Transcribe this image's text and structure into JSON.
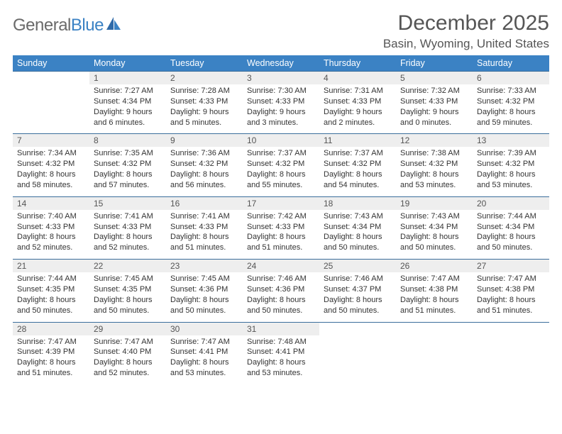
{
  "logo": {
    "text1": "General",
    "text2": "Blue"
  },
  "title": "December 2025",
  "location": "Basin, Wyoming, United States",
  "colors": {
    "header_bg": "#3b82c4",
    "header_text": "#ffffff",
    "daynum_bg": "#eeeeee",
    "rule": "#3b6e9c",
    "body_text": "#333333",
    "title_text": "#555555",
    "logo_gray": "#6a6a6a",
    "logo_blue": "#3b82c4",
    "page_bg": "#ffffff"
  },
  "weekdays": [
    "Sunday",
    "Monday",
    "Tuesday",
    "Wednesday",
    "Thursday",
    "Friday",
    "Saturday"
  ],
  "weeks": [
    [
      {
        "day": "",
        "sunrise": "",
        "sunset": "",
        "daylight": ""
      },
      {
        "day": "1",
        "sunrise": "Sunrise: 7:27 AM",
        "sunset": "Sunset: 4:34 PM",
        "daylight": "Daylight: 9 hours and 6 minutes."
      },
      {
        "day": "2",
        "sunrise": "Sunrise: 7:28 AM",
        "sunset": "Sunset: 4:33 PM",
        "daylight": "Daylight: 9 hours and 5 minutes."
      },
      {
        "day": "3",
        "sunrise": "Sunrise: 7:30 AM",
        "sunset": "Sunset: 4:33 PM",
        "daylight": "Daylight: 9 hours and 3 minutes."
      },
      {
        "day": "4",
        "sunrise": "Sunrise: 7:31 AM",
        "sunset": "Sunset: 4:33 PM",
        "daylight": "Daylight: 9 hours and 2 minutes."
      },
      {
        "day": "5",
        "sunrise": "Sunrise: 7:32 AM",
        "sunset": "Sunset: 4:33 PM",
        "daylight": "Daylight: 9 hours and 0 minutes."
      },
      {
        "day": "6",
        "sunrise": "Sunrise: 7:33 AM",
        "sunset": "Sunset: 4:32 PM",
        "daylight": "Daylight: 8 hours and 59 minutes."
      }
    ],
    [
      {
        "day": "7",
        "sunrise": "Sunrise: 7:34 AM",
        "sunset": "Sunset: 4:32 PM",
        "daylight": "Daylight: 8 hours and 58 minutes."
      },
      {
        "day": "8",
        "sunrise": "Sunrise: 7:35 AM",
        "sunset": "Sunset: 4:32 PM",
        "daylight": "Daylight: 8 hours and 57 minutes."
      },
      {
        "day": "9",
        "sunrise": "Sunrise: 7:36 AM",
        "sunset": "Sunset: 4:32 PM",
        "daylight": "Daylight: 8 hours and 56 minutes."
      },
      {
        "day": "10",
        "sunrise": "Sunrise: 7:37 AM",
        "sunset": "Sunset: 4:32 PM",
        "daylight": "Daylight: 8 hours and 55 minutes."
      },
      {
        "day": "11",
        "sunrise": "Sunrise: 7:37 AM",
        "sunset": "Sunset: 4:32 PM",
        "daylight": "Daylight: 8 hours and 54 minutes."
      },
      {
        "day": "12",
        "sunrise": "Sunrise: 7:38 AM",
        "sunset": "Sunset: 4:32 PM",
        "daylight": "Daylight: 8 hours and 53 minutes."
      },
      {
        "day": "13",
        "sunrise": "Sunrise: 7:39 AM",
        "sunset": "Sunset: 4:32 PM",
        "daylight": "Daylight: 8 hours and 53 minutes."
      }
    ],
    [
      {
        "day": "14",
        "sunrise": "Sunrise: 7:40 AM",
        "sunset": "Sunset: 4:33 PM",
        "daylight": "Daylight: 8 hours and 52 minutes."
      },
      {
        "day": "15",
        "sunrise": "Sunrise: 7:41 AM",
        "sunset": "Sunset: 4:33 PM",
        "daylight": "Daylight: 8 hours and 52 minutes."
      },
      {
        "day": "16",
        "sunrise": "Sunrise: 7:41 AM",
        "sunset": "Sunset: 4:33 PM",
        "daylight": "Daylight: 8 hours and 51 minutes."
      },
      {
        "day": "17",
        "sunrise": "Sunrise: 7:42 AM",
        "sunset": "Sunset: 4:33 PM",
        "daylight": "Daylight: 8 hours and 51 minutes."
      },
      {
        "day": "18",
        "sunrise": "Sunrise: 7:43 AM",
        "sunset": "Sunset: 4:34 PM",
        "daylight": "Daylight: 8 hours and 50 minutes."
      },
      {
        "day": "19",
        "sunrise": "Sunrise: 7:43 AM",
        "sunset": "Sunset: 4:34 PM",
        "daylight": "Daylight: 8 hours and 50 minutes."
      },
      {
        "day": "20",
        "sunrise": "Sunrise: 7:44 AM",
        "sunset": "Sunset: 4:34 PM",
        "daylight": "Daylight: 8 hours and 50 minutes."
      }
    ],
    [
      {
        "day": "21",
        "sunrise": "Sunrise: 7:44 AM",
        "sunset": "Sunset: 4:35 PM",
        "daylight": "Daylight: 8 hours and 50 minutes."
      },
      {
        "day": "22",
        "sunrise": "Sunrise: 7:45 AM",
        "sunset": "Sunset: 4:35 PM",
        "daylight": "Daylight: 8 hours and 50 minutes."
      },
      {
        "day": "23",
        "sunrise": "Sunrise: 7:45 AM",
        "sunset": "Sunset: 4:36 PM",
        "daylight": "Daylight: 8 hours and 50 minutes."
      },
      {
        "day": "24",
        "sunrise": "Sunrise: 7:46 AM",
        "sunset": "Sunset: 4:36 PM",
        "daylight": "Daylight: 8 hours and 50 minutes."
      },
      {
        "day": "25",
        "sunrise": "Sunrise: 7:46 AM",
        "sunset": "Sunset: 4:37 PM",
        "daylight": "Daylight: 8 hours and 50 minutes."
      },
      {
        "day": "26",
        "sunrise": "Sunrise: 7:47 AM",
        "sunset": "Sunset: 4:38 PM",
        "daylight": "Daylight: 8 hours and 51 minutes."
      },
      {
        "day": "27",
        "sunrise": "Sunrise: 7:47 AM",
        "sunset": "Sunset: 4:38 PM",
        "daylight": "Daylight: 8 hours and 51 minutes."
      }
    ],
    [
      {
        "day": "28",
        "sunrise": "Sunrise: 7:47 AM",
        "sunset": "Sunset: 4:39 PM",
        "daylight": "Daylight: 8 hours and 51 minutes."
      },
      {
        "day": "29",
        "sunrise": "Sunrise: 7:47 AM",
        "sunset": "Sunset: 4:40 PM",
        "daylight": "Daylight: 8 hours and 52 minutes."
      },
      {
        "day": "30",
        "sunrise": "Sunrise: 7:47 AM",
        "sunset": "Sunset: 4:41 PM",
        "daylight": "Daylight: 8 hours and 53 minutes."
      },
      {
        "day": "31",
        "sunrise": "Sunrise: 7:48 AM",
        "sunset": "Sunset: 4:41 PM",
        "daylight": "Daylight: 8 hours and 53 minutes."
      },
      {
        "day": "",
        "sunrise": "",
        "sunset": "",
        "daylight": ""
      },
      {
        "day": "",
        "sunrise": "",
        "sunset": "",
        "daylight": ""
      },
      {
        "day": "",
        "sunrise": "",
        "sunset": "",
        "daylight": ""
      }
    ]
  ]
}
